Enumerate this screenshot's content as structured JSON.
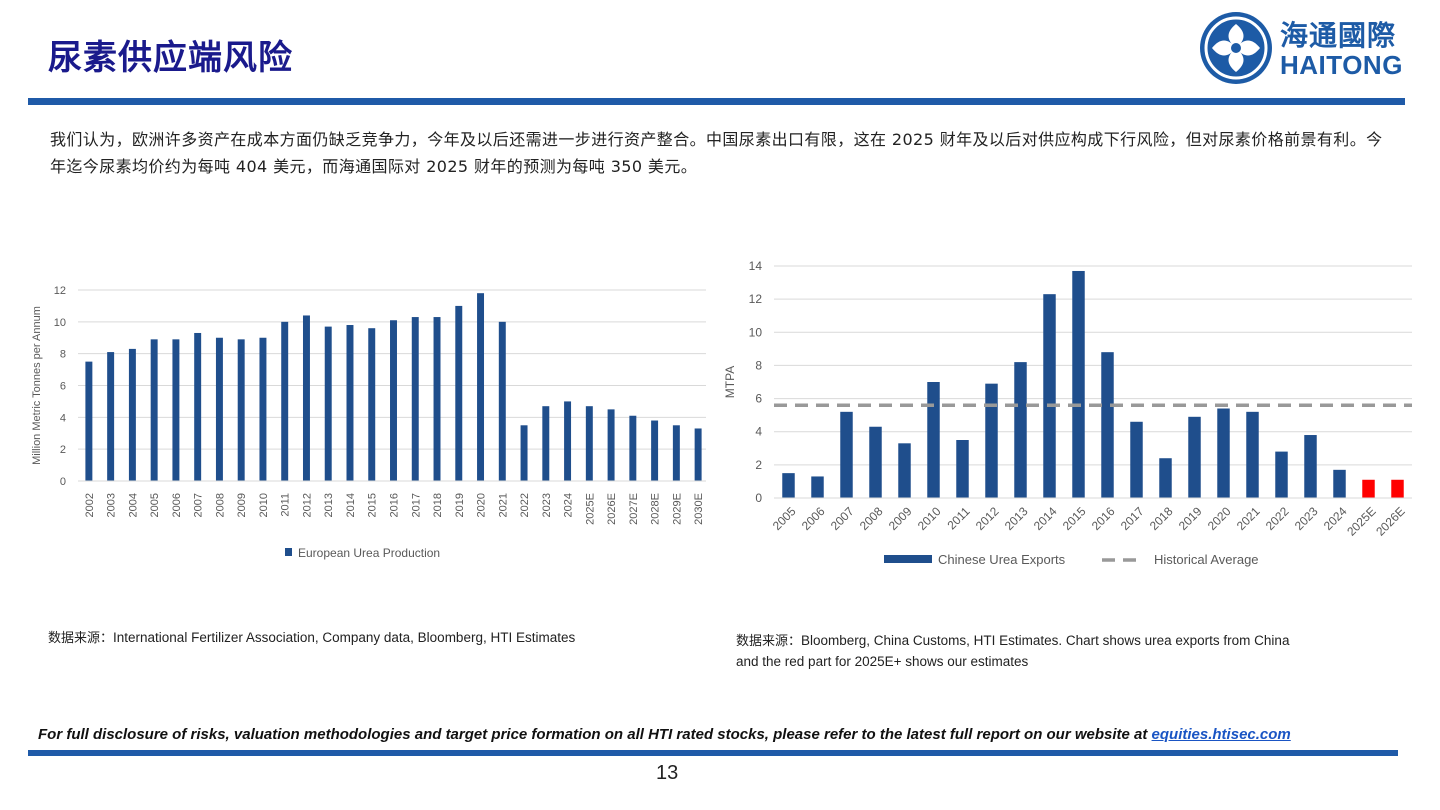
{
  "header": {
    "title": "尿素供应端风险",
    "logo_cn": "海通國際",
    "logo_en": "HAITONG"
  },
  "body": {
    "paragraph": "我们认为，欧洲许多资产在成本方面仍缺乏竞争力，今年及以后还需进一步进行资产整合。中国尿素出口有限，这在 2025 财年及以后对供应构成下行风险，但对尿素价格前景有利。今年迄今尿素均价约为每吨 404 美元，而海通国际对 2025 财年的预测为每吨 350 美元。"
  },
  "chart_data": [
    {
      "type": "bar",
      "title": "",
      "xlabel": "",
      "ylabel": "Million Metric Tonnes per Annum",
      "ylim": [
        0,
        12
      ],
      "yticks": [
        0,
        2,
        4,
        6,
        8,
        10,
        12
      ],
      "grid": true,
      "categories": [
        "2002",
        "2003",
        "2004",
        "2005",
        "2006",
        "2007",
        "2008",
        "2009",
        "2010",
        "2011",
        "2012",
        "2013",
        "2014",
        "2015",
        "2016",
        "2017",
        "2018",
        "2019",
        "2020",
        "2021",
        "2022",
        "2023",
        "2024",
        "2025E",
        "2026E",
        "2027E",
        "2028E",
        "2029E",
        "2030E"
      ],
      "series": [
        {
          "name": "European Urea Production",
          "color": "#1f4e8c",
          "values": [
            7.5,
            8.1,
            8.3,
            8.9,
            8.9,
            9.3,
            9.0,
            8.9,
            9.0,
            10.0,
            10.4,
            9.7,
            9.8,
            9.6,
            10.1,
            10.3,
            10.3,
            11.0,
            11.8,
            10.0,
            3.5,
            4.7,
            5.0,
            4.7,
            4.5,
            4.1,
            3.8,
            3.5,
            3.3
          ]
        }
      ],
      "legend": "bottom"
    },
    {
      "type": "bar",
      "title": "",
      "xlabel": "",
      "ylabel": "MTPA",
      "ylim": [
        0,
        14
      ],
      "yticks": [
        0,
        2,
        4,
        6,
        8,
        10,
        12,
        14
      ],
      "grid": true,
      "categories": [
        "2005",
        "2006",
        "2007",
        "2008",
        "2009",
        "2010",
        "2011",
        "2012",
        "2013",
        "2014",
        "2015",
        "2016",
        "2017",
        "2018",
        "2019",
        "2020",
        "2021",
        "2022",
        "2023",
        "2024",
        "2025E",
        "2026E"
      ],
      "series": [
        {
          "name": "Chinese Urea Exports",
          "color": "#1f4e8c",
          "estimate_color": "#ff0000",
          "values": [
            1.5,
            1.3,
            5.2,
            4.3,
            3.3,
            7.0,
            3.5,
            6.9,
            8.2,
            12.3,
            13.7,
            8.8,
            4.6,
            2.4,
            4.9,
            5.4,
            5.2,
            2.8,
            3.8,
            1.7,
            1.1,
            1.1
          ]
        },
        {
          "name": "Historical Average",
          "type": "dashed-line",
          "color": "#999999",
          "value": 5.6
        }
      ],
      "legend": "bottom"
    }
  ],
  "sources": {
    "left_prefix": "数据来源：",
    "left_text": "International Fertilizer Association, Company data, Bloomberg, HTI Estimates",
    "right_prefix": "数据来源：",
    "right_text_line1": "Bloomberg, China Customs, HTI Estimates. Chart shows urea exports from China",
    "right_text_line2": "and the red part for 2025E+ shows our estimates"
  },
  "footer": {
    "disclaimer": "For full disclosure of risks, valuation methodologies and target price formation on all HTI rated stocks, please refer to the latest full report on our website at ",
    "link": "equities.htisec.com",
    "page_number": "13"
  }
}
